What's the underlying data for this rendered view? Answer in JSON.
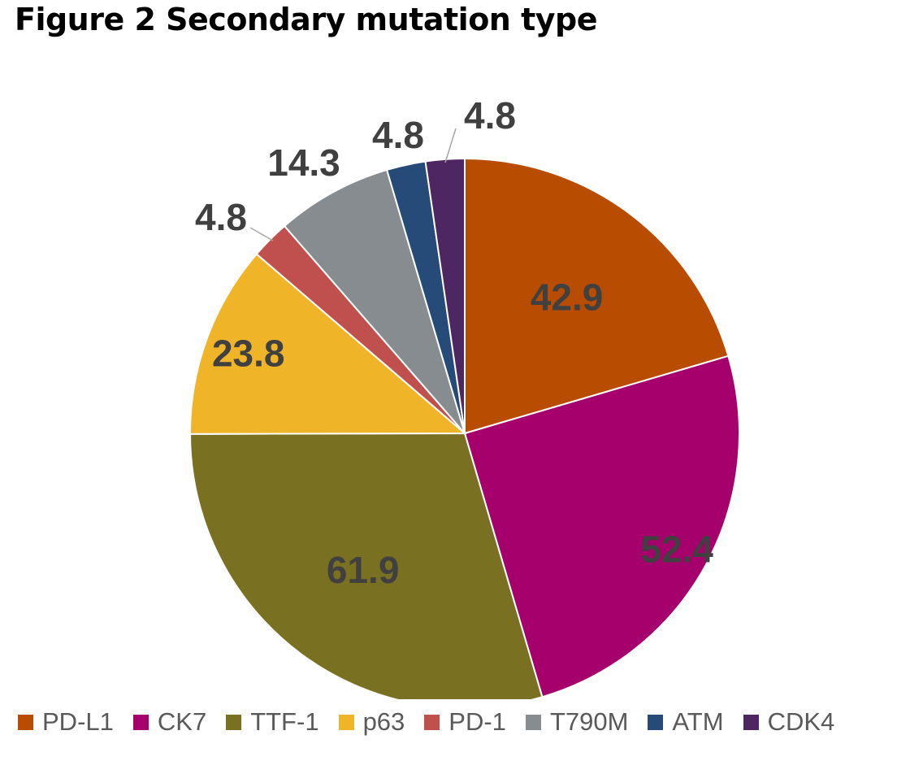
{
  "title": "Figure 2 Secondary mutation type",
  "chart_data": {
    "type": "pie",
    "title": "Figure 2 Secondary mutation type",
    "categories": [
      "PD-L1",
      "CK7",
      "TTF-1",
      "p63",
      "PD-1",
      "T790M",
      "ATM",
      "CDK4"
    ],
    "values": [
      42.9,
      52.4,
      61.9,
      23.8,
      4.8,
      14.3,
      4.8,
      4.8
    ],
    "data_labels": [
      "42.9",
      "52.4",
      "61.9",
      "23.8",
      "4.8",
      "14.3",
      "4.8",
      "4.8"
    ],
    "colors": [
      "#B84C00",
      "#A5006B",
      "#7A7022",
      "#F0B429",
      "#C0504D",
      "#878C91",
      "#264B78",
      "#4E2661"
    ],
    "legend_position": "bottom",
    "label_color": "#404040"
  }
}
